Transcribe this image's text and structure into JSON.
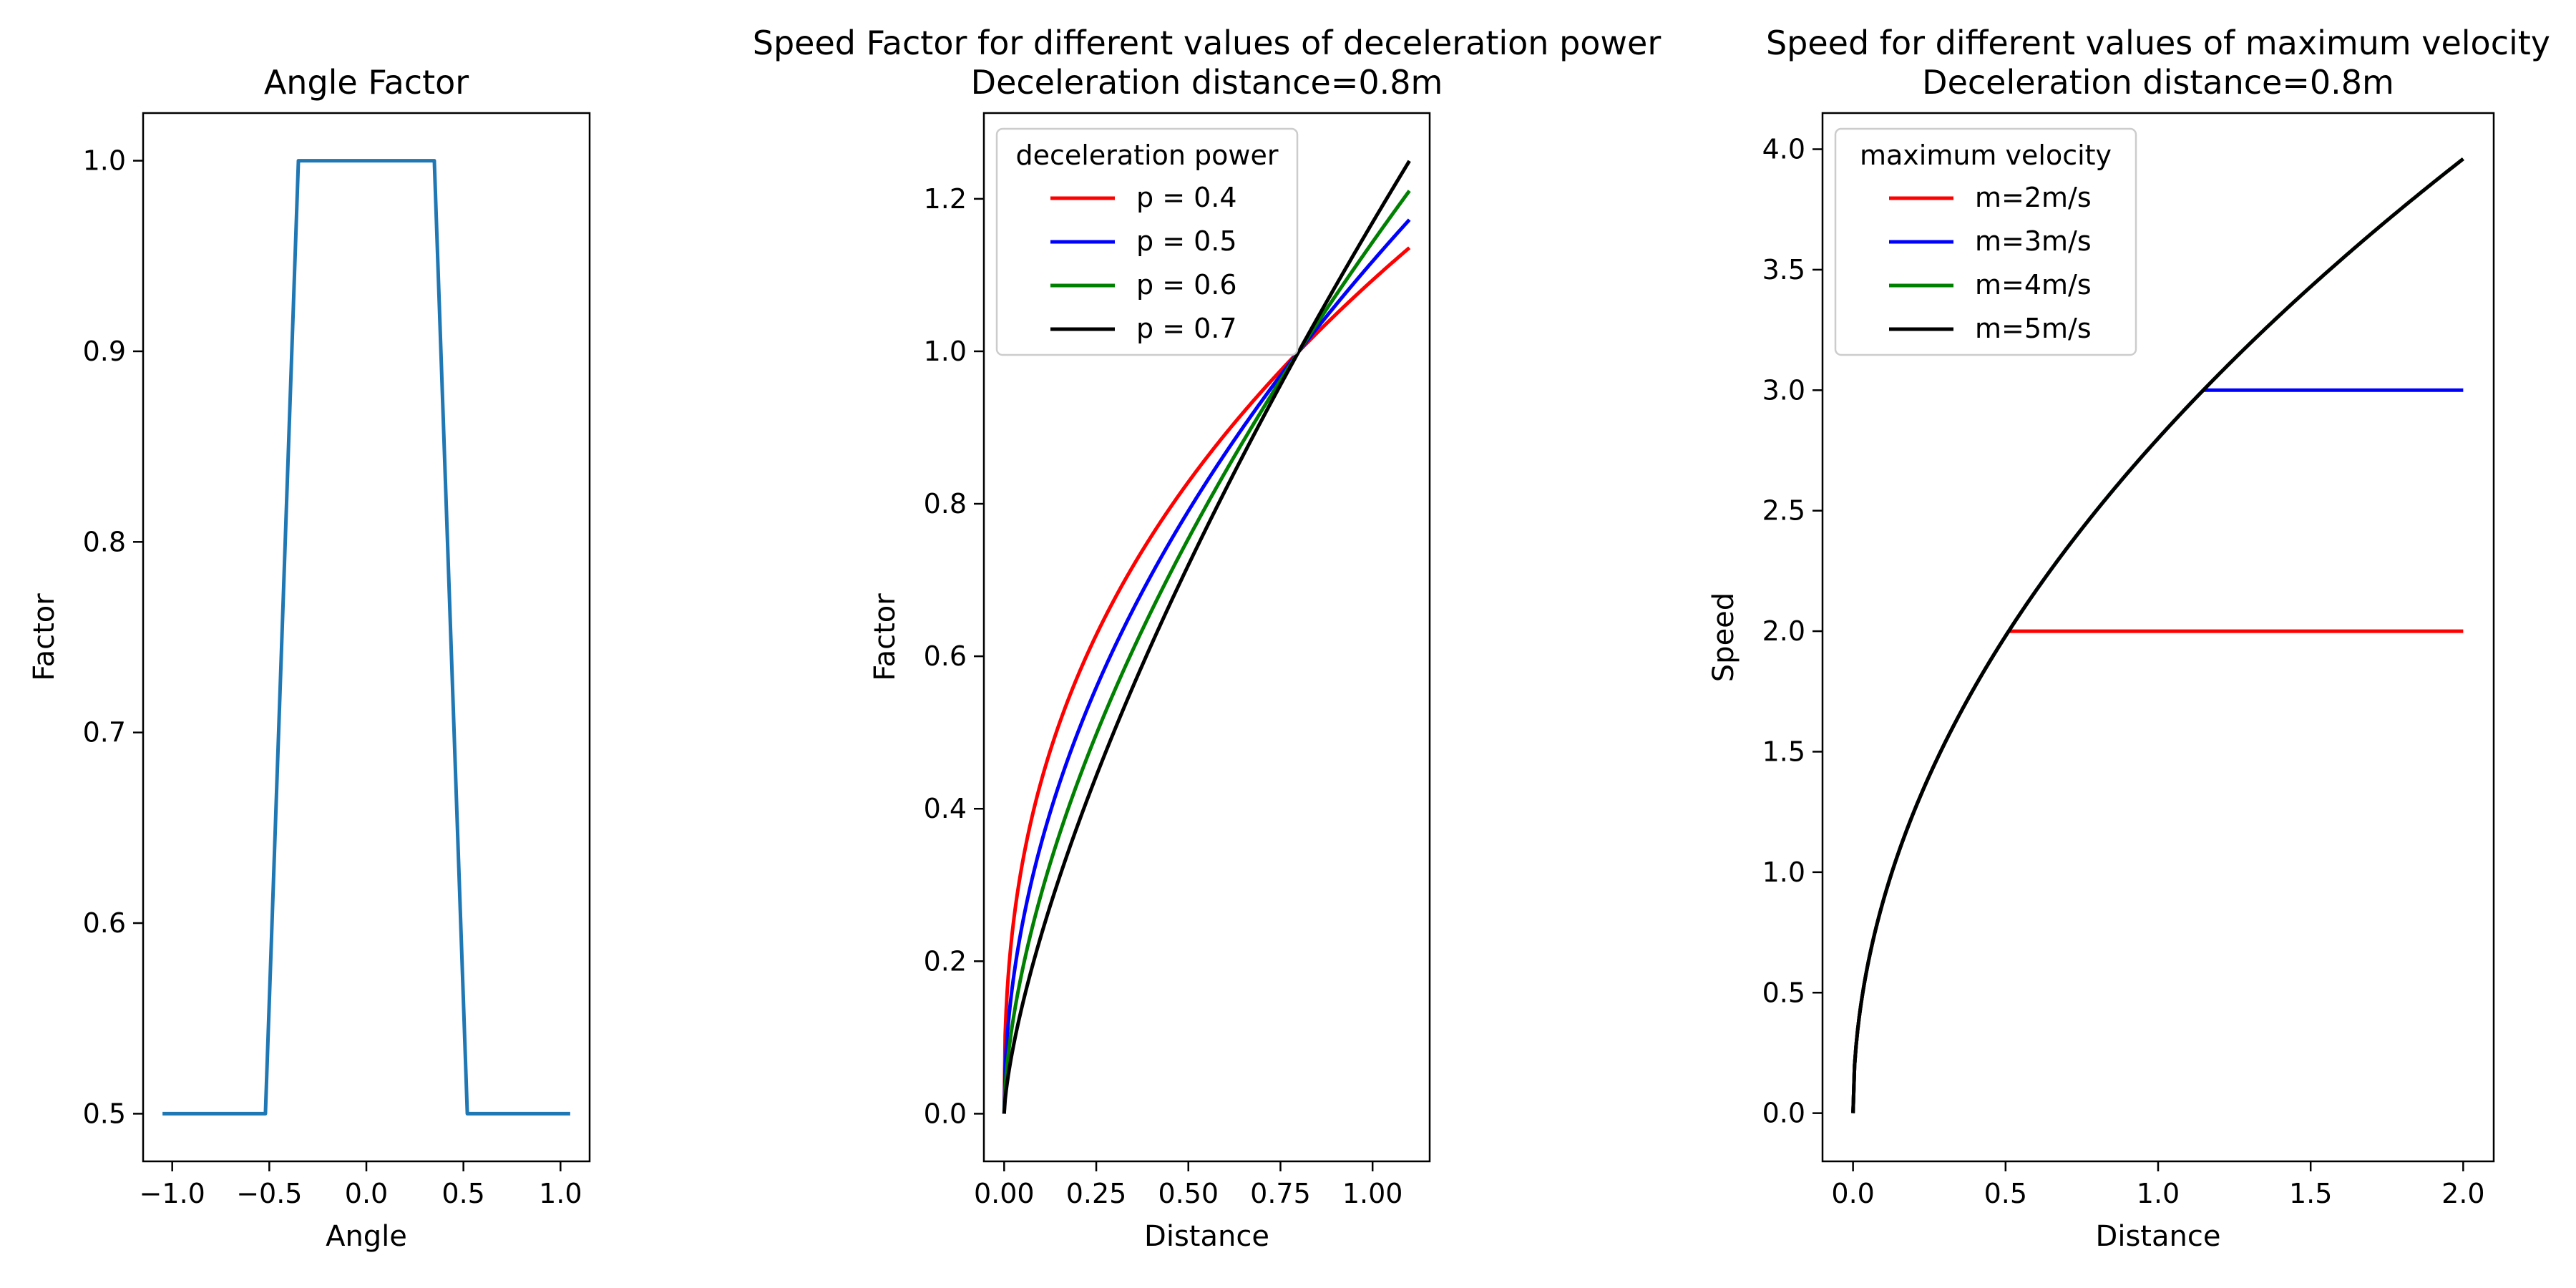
{
  "chart_data": [
    {
      "type": "line",
      "title": "Angle Factor",
      "xlabel": "Angle",
      "ylabel": "Factor",
      "xlim": [
        -1.15,
        1.15
      ],
      "ylim": [
        0.475,
        1.025
      ],
      "xticks": [
        -1.0,
        -0.5,
        0.0,
        0.5,
        1.0
      ],
      "xtick_labels": [
        "−1.0",
        "−0.5",
        "0.0",
        "0.5",
        "1.0"
      ],
      "yticks": [
        0.5,
        0.6,
        0.7,
        0.8,
        0.9,
        1.0
      ],
      "ytick_labels": [
        "0.5",
        "0.6",
        "0.7",
        "0.8",
        "0.9",
        "1.0"
      ],
      "grid": false,
      "series": [
        {
          "color": "#1f77b4",
          "x": [
            -1.05,
            -0.52,
            -0.35,
            0.35,
            0.52,
            1.05
          ],
          "y": [
            0.5,
            0.5,
            1.0,
            1.0,
            0.5,
            0.5
          ]
        }
      ]
    },
    {
      "type": "line",
      "title": "Speed Factor for different values of deceleration power",
      "subtitle": "Deceleration distance=0.8m",
      "xlabel": "Distance",
      "ylabel": "Factor",
      "xlim": [
        -0.055,
        1.155
      ],
      "ylim": [
        -0.0625,
        1.3125
      ],
      "xticks": [
        0.0,
        0.25,
        0.5,
        0.75,
        1.0
      ],
      "xtick_labels": [
        "0.00",
        "0.25",
        "0.50",
        "0.75",
        "1.00"
      ],
      "yticks": [
        0.0,
        0.2,
        0.4,
        0.6,
        0.8,
        1.0,
        1.2
      ],
      "ytick_labels": [
        "0.0",
        "0.2",
        "0.4",
        "0.6",
        "0.8",
        "1.0",
        "1.2"
      ],
      "grid": false,
      "legend": {
        "title": "deceleration power",
        "placement": "top-left"
      },
      "series": [
        {
          "name": "p = 0.4",
          "color": "#ff0000",
          "curve": {
            "kind": "power",
            "scale": 0.8,
            "exponent": 0.4,
            "xmax": 1.1
          }
        },
        {
          "name": "p = 0.5",
          "color": "#0000ff",
          "curve": {
            "kind": "power",
            "scale": 0.8,
            "exponent": 0.5,
            "xmax": 1.1
          }
        },
        {
          "name": "p = 0.6",
          "color": "#008000",
          "curve": {
            "kind": "power",
            "scale": 0.8,
            "exponent": 0.6,
            "xmax": 1.1
          }
        },
        {
          "name": "p = 0.7",
          "color": "#000000",
          "curve": {
            "kind": "power",
            "scale": 0.8,
            "exponent": 0.7,
            "xmax": 1.1
          }
        }
      ]
    },
    {
      "type": "line",
      "title": "Speed for different values of maximum velocity",
      "subtitle": "Deceleration distance=0.8m",
      "xlabel": "Distance",
      "ylabel": "Speed",
      "xlim": [
        -0.1,
        2.1
      ],
      "ylim": [
        -0.2,
        4.15
      ],
      "xticks": [
        0.0,
        0.5,
        1.0,
        1.5,
        2.0
      ],
      "xtick_labels": [
        "0.0",
        "0.5",
        "1.0",
        "1.5",
        "2.0"
      ],
      "yticks": [
        0.0,
        0.5,
        1.0,
        1.5,
        2.0,
        2.5,
        3.0,
        3.5,
        4.0
      ],
      "ytick_labels": [
        "0.0",
        "0.5",
        "1.0",
        "1.5",
        "2.0",
        "2.5",
        "3.0",
        "3.5",
        "4.0"
      ],
      "grid": false,
      "legend": {
        "title": "maximum velocity",
        "placement": "top-left"
      },
      "series": [
        {
          "name": "m=2m/s",
          "color": "#ff0000",
          "curve": {
            "kind": "capped-sqrt",
            "coef": 2.8,
            "cap": 2,
            "xmax": 2.0
          }
        },
        {
          "name": "m=3m/s",
          "color": "#0000ff",
          "curve": {
            "kind": "capped-sqrt",
            "coef": 2.8,
            "cap": 3,
            "xmax": 2.0
          }
        },
        {
          "name": "m=4m/s",
          "color": "#008000",
          "curve": {
            "kind": "capped-sqrt",
            "coef": 2.8,
            "cap": 4,
            "xmax": 2.0
          }
        },
        {
          "name": "m=5m/s",
          "color": "#000000",
          "curve": {
            "kind": "capped-sqrt",
            "coef": 2.8,
            "cap": 5,
            "xmax": 2.0
          }
        }
      ]
    }
  ]
}
